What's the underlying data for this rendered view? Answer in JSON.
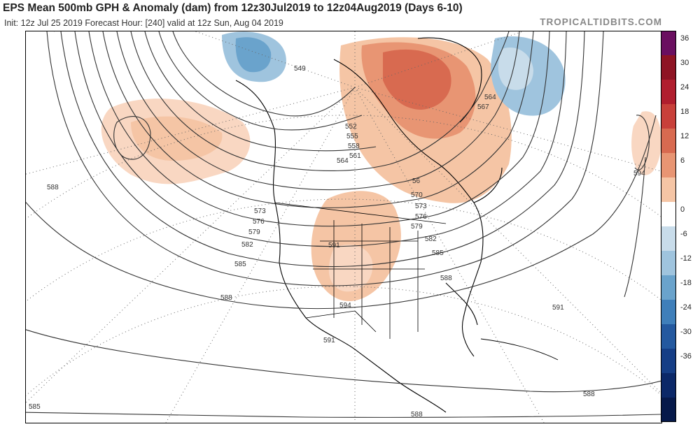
{
  "header": {
    "title": "EPS Mean 500mb GPH & Anomaly (dam) from 12z30Jul2019 to 12z04Aug2019 (Days 6-10)",
    "subtitle": "Init: 12z Jul 25 2019   Forecast Hour: [240]   valid at 12z Sun, Aug 04 2019",
    "brand": "TROPICALTIDBITS.COM"
  },
  "colorbar": {
    "colors": [
      "#6a0f60",
      "#8e1424",
      "#b01e2e",
      "#c8403a",
      "#d86a50",
      "#e89573",
      "#f5c5a5",
      "#ffffff",
      "#c8dcea",
      "#9fc4de",
      "#6aa3cc",
      "#3f7fba",
      "#24599f",
      "#153e86",
      "#0b2868",
      "#06194a"
    ],
    "tick_labels": [
      "36",
      "30",
      "24",
      "18",
      "12",
      "6",
      "0",
      "-6",
      "-12",
      "-18",
      "-24",
      "-30",
      "-36"
    ]
  },
  "contour_labels": [
    {
      "text": "549"
    },
    {
      "text": "552"
    },
    {
      "text": "555"
    },
    {
      "text": "558"
    },
    {
      "text": "561"
    },
    {
      "text": "564"
    },
    {
      "text": "564"
    },
    {
      "text": "567"
    },
    {
      "text": "570"
    },
    {
      "text": "573"
    },
    {
      "text": "573"
    },
    {
      "text": "576"
    },
    {
      "text": "576"
    },
    {
      "text": "579"
    },
    {
      "text": "579"
    },
    {
      "text": "582"
    },
    {
      "text": "582"
    },
    {
      "text": "585"
    },
    {
      "text": "585"
    },
    {
      "text": "588"
    },
    {
      "text": "588"
    },
    {
      "text": "588"
    },
    {
      "text": "588"
    },
    {
      "text": "588"
    },
    {
      "text": "591"
    },
    {
      "text": "591"
    },
    {
      "text": "591"
    },
    {
      "text": "594"
    },
    {
      "text": "594"
    },
    {
      "text": "585"
    },
    {
      "text": "56"
    }
  ],
  "icons": {
    "map": "contour-map",
    "colorbar": "anomaly-colorbar"
  }
}
